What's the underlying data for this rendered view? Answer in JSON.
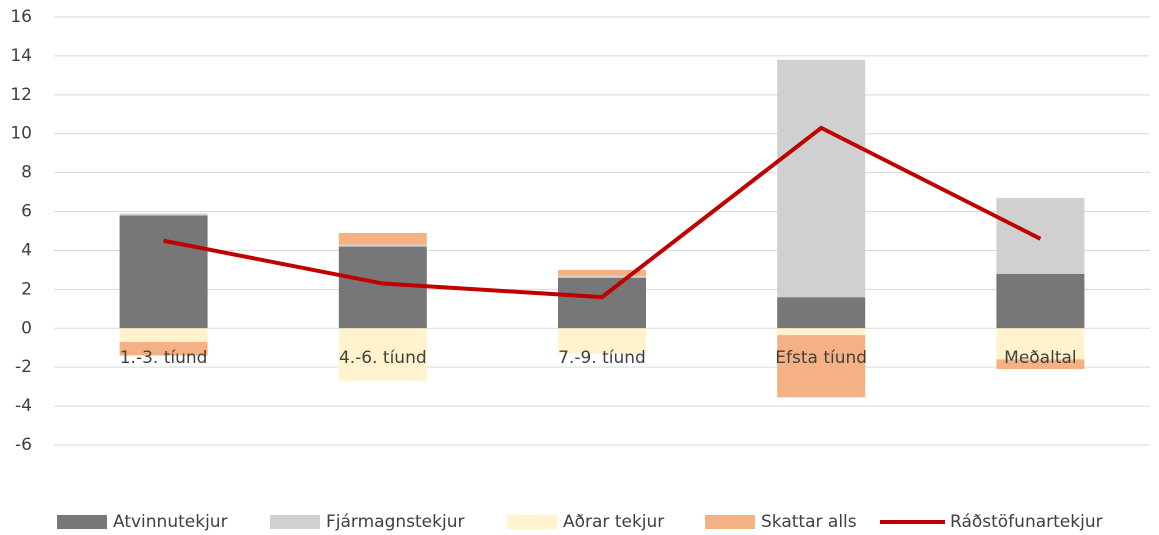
{
  "chart_data": {
    "type": "bar",
    "categories": [
      "1.-3. tíund",
      "4.-6. tíund",
      "7.-9. tíund",
      "Efsta tíund",
      "Meðaltal"
    ],
    "series": [
      {
        "name": "Atvinnutekjur",
        "color": "#777777",
        "type": "bar",
        "values": [
          5.8,
          4.2,
          2.6,
          1.6,
          2.8
        ]
      },
      {
        "name": "Fjármagnstekjur",
        "color": "#d0d0d0",
        "type": "bar",
        "values": [
          0.1,
          0.1,
          0.1,
          12.2,
          3.9
        ]
      },
      {
        "name": "Aðrar tekjur",
        "color": "#fff2cc",
        "type": "bar",
        "values": [
          -0.7,
          -2.7,
          -1.3,
          -0.35,
          -1.6
        ]
      },
      {
        "name": "Skattar alls",
        "color": "#f4b183",
        "type": "bar",
        "values": [
          -0.7,
          0.6,
          0.3,
          -3.2,
          -0.5
        ]
      },
      {
        "name": "Ráðstöfunartekjur",
        "color": "#c00000",
        "type": "line",
        "values": [
          4.5,
          2.3,
          1.6,
          10.3,
          4.6
        ]
      }
    ],
    "ylim": [
      -6,
      16
    ],
    "yticks": [
      -6,
      -4,
      -2,
      0,
      2,
      4,
      6,
      8,
      10,
      12,
      14,
      16
    ],
    "grid": true,
    "legend": "bottom"
  }
}
